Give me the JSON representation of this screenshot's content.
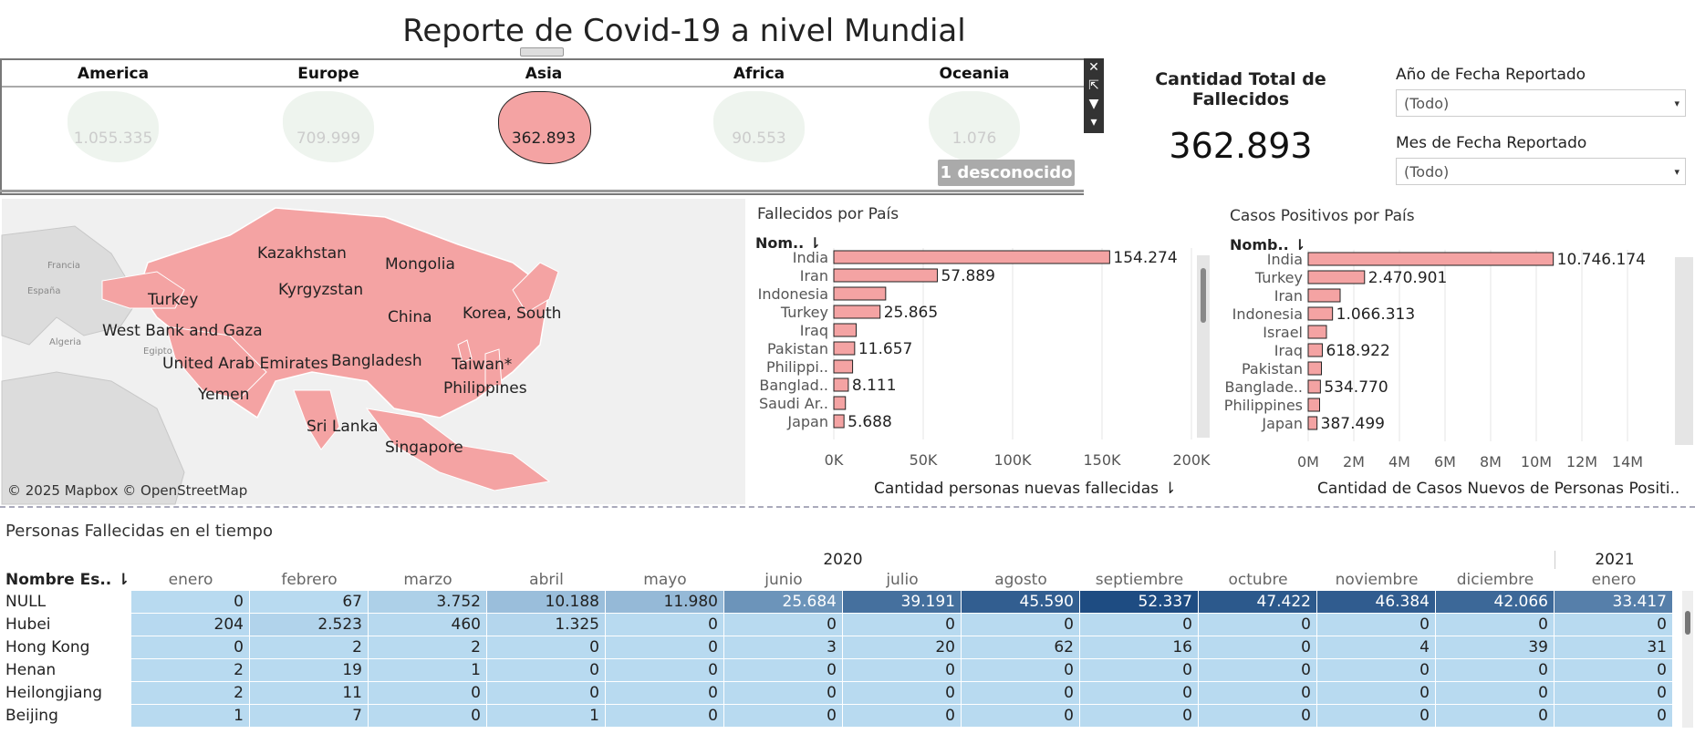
{
  "title": "Reporte de Covid-19 a nivel Mundial",
  "continents": [
    {
      "name": "America",
      "value": "1.055.335",
      "active": false
    },
    {
      "name": "Europe",
      "value": "709.999",
      "active": false
    },
    {
      "name": "Asia",
      "value": "362.893",
      "active": true
    },
    {
      "name": "Africa",
      "value": "90.553",
      "active": false
    },
    {
      "name": "Oceania",
      "value": "1.076",
      "active": false
    }
  ],
  "unknown_badge": "1 desconocido",
  "total": {
    "label": "Cantidad Total de Fallecidos",
    "value": "362.893"
  },
  "filters": [
    {
      "label": "Año de Fecha Reportado",
      "value": "(Todo)"
    },
    {
      "label": "Mes de Fecha Reportado",
      "value": "(Todo)"
    }
  ],
  "map": {
    "attribution": "© 2025 Mapbox © OpenStreetMap",
    "labels": [
      "Kazakhstan",
      "Mongolia",
      "Kyrgyzstan",
      "Turkey",
      "China",
      "Korea, South",
      "West Bank and Gaza",
      "United Arab Emirates",
      "Bangladesh",
      "Taiwan*",
      "Philippines",
      "Yemen",
      "Sri Lanka",
      "Singapore",
      "Francia",
      "España",
      "Algeria",
      "Egipto"
    ],
    "highlight_color": "#f4a3a3"
  },
  "chart_data": [
    {
      "type": "bar",
      "title": "Fallecidos por País",
      "header": "Nom..",
      "xlabel": "Cantidad personas nuevas fallecidas",
      "categories": [
        "India",
        "Iran",
        "Indonesia",
        "Turkey",
        "Iraq",
        "Pakistan",
        "Philippi..",
        "Banglad..",
        "Saudi Ar..",
        "Japan"
      ],
      "values": [
        154274,
        57889,
        29000,
        25865,
        12500,
        11657,
        10500,
        8111,
        6500,
        5688
      ],
      "data_labels": [
        "154.274",
        "57.889",
        "",
        "25.865",
        "",
        "11.657",
        "",
        "8.111",
        "",
        "5.688"
      ],
      "xticks": [
        "0K",
        "50K",
        "100K",
        "150K",
        "200K"
      ],
      "xlim": [
        0,
        200000
      ]
    },
    {
      "type": "bar",
      "title": "Casos Positivos por País",
      "header": "Nomb..",
      "xlabel": "Cantidad de Casos Nuevos de Personas Positi..",
      "categories": [
        "India",
        "Turkey",
        "Iran",
        "Indonesia",
        "Israel",
        "Iraq",
        "Pakistan",
        "Banglade..",
        "Philippines",
        "Japan"
      ],
      "values": [
        10746174,
        2470901,
        1400000,
        1066313,
        800000,
        618922,
        580000,
        534770,
        500000,
        387499
      ],
      "data_labels": [
        "10.746.174",
        "2.470.901",
        "",
        "1.066.313",
        "",
        "618.922",
        "",
        "534.770",
        "",
        "387.499"
      ],
      "xticks": [
        "0M",
        "2M",
        "4M",
        "6M",
        "8M",
        "10M",
        "12M",
        "14M"
      ],
      "xlim": [
        0,
        14000000
      ]
    },
    {
      "type": "heatmap",
      "title": "Personas Fallecidas en el tiempo",
      "row_header": "Nombre Es..",
      "years": [
        {
          "label": "2020",
          "span": 12
        },
        {
          "label": "2021",
          "span": 1
        }
      ],
      "months": [
        "enero",
        "febrero",
        "marzo",
        "abril",
        "mayo",
        "junio",
        "julio",
        "agosto",
        "septiembre",
        "octubre",
        "noviembre",
        "diciembre",
        "enero"
      ],
      "rows": [
        {
          "name": "NULL",
          "values": [
            0,
            67,
            3752,
            10188,
            11980,
            25684,
            39191,
            45590,
            52337,
            47422,
            46384,
            42066,
            33417
          ]
        },
        {
          "name": "Hubei",
          "values": [
            204,
            2523,
            460,
            1325,
            0,
            0,
            0,
            0,
            0,
            0,
            0,
            0,
            0
          ]
        },
        {
          "name": "Hong Kong",
          "values": [
            0,
            2,
            2,
            0,
            0,
            3,
            20,
            62,
            16,
            0,
            4,
            39,
            31
          ]
        },
        {
          "name": "Henan",
          "values": [
            2,
            19,
            1,
            0,
            0,
            0,
            0,
            0,
            0,
            0,
            0,
            0,
            0
          ]
        },
        {
          "name": "Heilongjiang",
          "values": [
            2,
            11,
            0,
            0,
            0,
            0,
            0,
            0,
            0,
            0,
            0,
            0,
            0
          ]
        },
        {
          "name": "Beijing",
          "values": [
            1,
            7,
            0,
            1,
            0,
            0,
            0,
            0,
            0,
            0,
            0,
            0,
            0
          ]
        }
      ],
      "display": [
        [
          "0",
          "67",
          "3.752",
          "10.188",
          "11.980",
          "25.684",
          "39.191",
          "45.590",
          "52.337",
          "47.422",
          "46.384",
          "42.066",
          "33.417"
        ],
        [
          "204",
          "2.523",
          "460",
          "1.325",
          "0",
          "0",
          "0",
          "0",
          "0",
          "0",
          "0",
          "0",
          "0"
        ],
        [
          "0",
          "2",
          "2",
          "0",
          "0",
          "3",
          "20",
          "62",
          "16",
          "0",
          "4",
          "39",
          "31"
        ],
        [
          "2",
          "19",
          "1",
          "0",
          "0",
          "0",
          "0",
          "0",
          "0",
          "0",
          "0",
          "0",
          "0"
        ],
        [
          "2",
          "11",
          "0",
          "0",
          "0",
          "0",
          "0",
          "0",
          "0",
          "0",
          "0",
          "0",
          "0"
        ],
        [
          "1",
          "7",
          "0",
          "1",
          "0",
          "0",
          "0",
          "0",
          "0",
          "0",
          "0",
          "0",
          "0"
        ]
      ]
    }
  ]
}
